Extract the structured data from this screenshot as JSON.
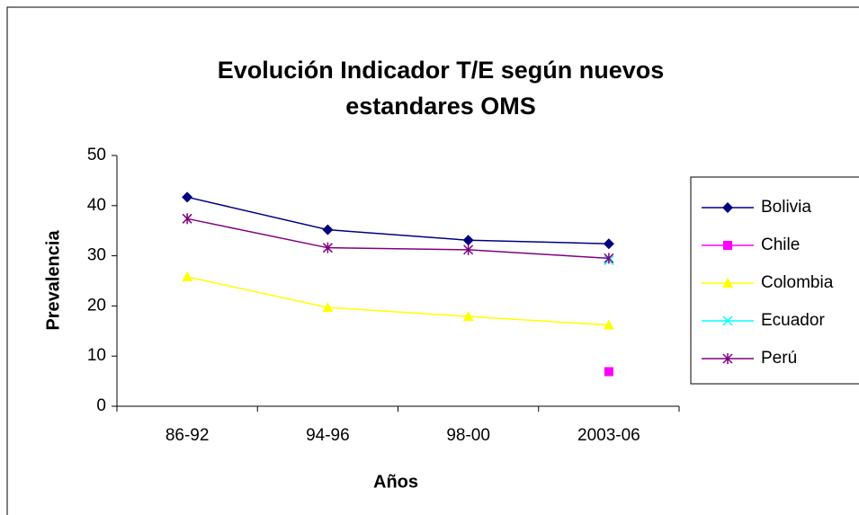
{
  "chart_data": {
    "type": "line",
    "title": "Evolución Indicador T/E según nuevos estandares OMS",
    "x_label": "Años",
    "y_label": "Prevalencia",
    "categories": [
      "86-92",
      "94-96",
      "98-00",
      "2003-06"
    ],
    "series": [
      {
        "name": "Bolivia",
        "color": "#000080",
        "marker": "diamond",
        "values": [
          41.7,
          35.2,
          33.1,
          32.4
        ]
      },
      {
        "name": "Chile",
        "color": "#ff00ff",
        "marker": "square",
        "values": [
          null,
          null,
          null,
          6.9
        ]
      },
      {
        "name": "Colombia",
        "color": "#ffff00",
        "marker": "triangle",
        "values": [
          25.8,
          19.7,
          17.9,
          16.2
        ]
      },
      {
        "name": "Ecuador",
        "color": "#00ffff",
        "marker": "x",
        "values": [
          null,
          null,
          null,
          29.1
        ]
      },
      {
        "name": "Perú",
        "color": "#800080",
        "marker": "star",
        "values": [
          37.4,
          31.6,
          31.2,
          29.5
        ]
      }
    ],
    "ylim": [
      0,
      50
    ],
    "yticks": [
      0,
      10,
      20,
      30,
      40,
      50
    ],
    "grid": false,
    "legend": "right"
  }
}
